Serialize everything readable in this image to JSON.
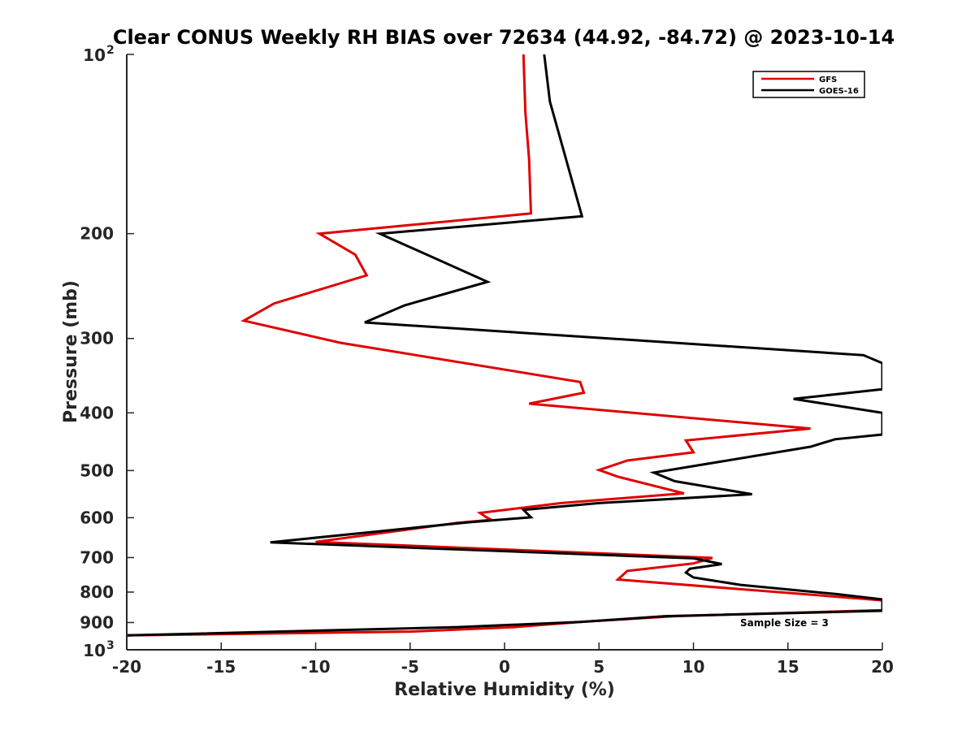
{
  "chart_data": {
    "type": "line",
    "title": "Clear CONUS Weekly RH BIAS over 72634 (44.92, -84.72) @ 2023-10-14",
    "xlabel": "Relative Humidity (%)",
    "ylabel": "Pressure (mb)",
    "xlim": [
      -20,
      20
    ],
    "ylim": [
      100,
      1000
    ],
    "yscale": "log",
    "yreversed": true,
    "grid": false,
    "legend_position": "top-right",
    "annotation": "Sample Size = 3",
    "xticks": [
      "-20",
      "-15",
      "-10",
      "-5",
      "0",
      "5",
      "10",
      "15",
      "20"
    ],
    "yticks": [
      {
        "base": "10",
        "exp": "2"
      },
      {
        "base": "200",
        "exp": ""
      },
      {
        "base": "300",
        "exp": ""
      },
      {
        "base": "400",
        "exp": ""
      },
      {
        "base": "500",
        "exp": ""
      },
      {
        "base": "600",
        "exp": ""
      },
      {
        "base": "700",
        "exp": ""
      },
      {
        "base": "800",
        "exp": ""
      },
      {
        "base": "900",
        "exp": ""
      },
      {
        "base": "10",
        "exp": "3"
      }
    ],
    "ytick_values": [
      100,
      200,
      300,
      400,
      500,
      600,
      700,
      800,
      900,
      1000
    ],
    "series": [
      {
        "name": "GFS",
        "color": "#e00000",
        "points": [
          [
            1.0,
            100
          ],
          [
            1.1,
            125
          ],
          [
            1.3,
            150
          ],
          [
            1.4,
            185
          ],
          [
            -9.8,
            200
          ],
          [
            -7.9,
            217
          ],
          [
            -7.3,
            235
          ],
          [
            -12.2,
            262
          ],
          [
            -13.8,
            280
          ],
          [
            -8.7,
            305
          ],
          [
            4.0,
            355
          ],
          [
            4.2,
            370
          ],
          [
            1.3,
            386
          ],
          [
            16.2,
            425
          ],
          [
            9.6,
            445
          ],
          [
            10.0,
            466
          ],
          [
            6.5,
            481
          ],
          [
            5.0,
            499
          ],
          [
            6.0,
            512
          ],
          [
            9.5,
            546
          ],
          [
            3.0,
            567
          ],
          [
            -1.3,
            589
          ],
          [
            -1.0,
            598
          ],
          [
            -0.7,
            605
          ],
          [
            -2.5,
            612
          ],
          [
            -10.0,
            659
          ],
          [
            11.0,
            701
          ],
          [
            10.0,
            716
          ],
          [
            6.5,
            737
          ],
          [
            6.0,
            762
          ],
          [
            20.0,
            826
          ],
          [
            20.0,
            858
          ],
          [
            9.0,
            878
          ],
          [
            4.0,
            898
          ],
          [
            0.5,
            916
          ],
          [
            -5.0,
            932
          ],
          [
            -20.0,
            946
          ]
        ]
      },
      {
        "name": "GOES-16",
        "color": "#000000",
        "points": [
          [
            2.1,
            100
          ],
          [
            2.4,
            120
          ],
          [
            4.1,
            187
          ],
          [
            -6.6,
            200
          ],
          [
            -0.9,
            241
          ],
          [
            -5.3,
            264
          ],
          [
            -7.4,
            282
          ],
          [
            19.0,
            320
          ],
          [
            20.0,
            330
          ],
          [
            20.0,
            365
          ],
          [
            15.3,
            379
          ],
          [
            20.0,
            400
          ],
          [
            20.0,
            435
          ],
          [
            17.5,
            443
          ],
          [
            16.2,
            456
          ],
          [
            7.9,
            504
          ],
          [
            9.0,
            521
          ],
          [
            13.1,
            548
          ],
          [
            5.0,
            567
          ],
          [
            1.0,
            582
          ],
          [
            1.4,
            599
          ],
          [
            -2.0,
            611
          ],
          [
            -12.4,
            660
          ],
          [
            10.0,
            702
          ],
          [
            11.5,
            718
          ],
          [
            9.8,
            731
          ],
          [
            9.6,
            742
          ],
          [
            10.0,
            756
          ],
          [
            12.5,
            778
          ],
          [
            17.5,
            806
          ],
          [
            20.0,
            823
          ],
          [
            20.0,
            860
          ],
          [
            8.5,
            878
          ],
          [
            4.0,
            898
          ],
          [
            -2.5,
            916
          ],
          [
            -20.0,
            946
          ]
        ]
      }
    ]
  }
}
